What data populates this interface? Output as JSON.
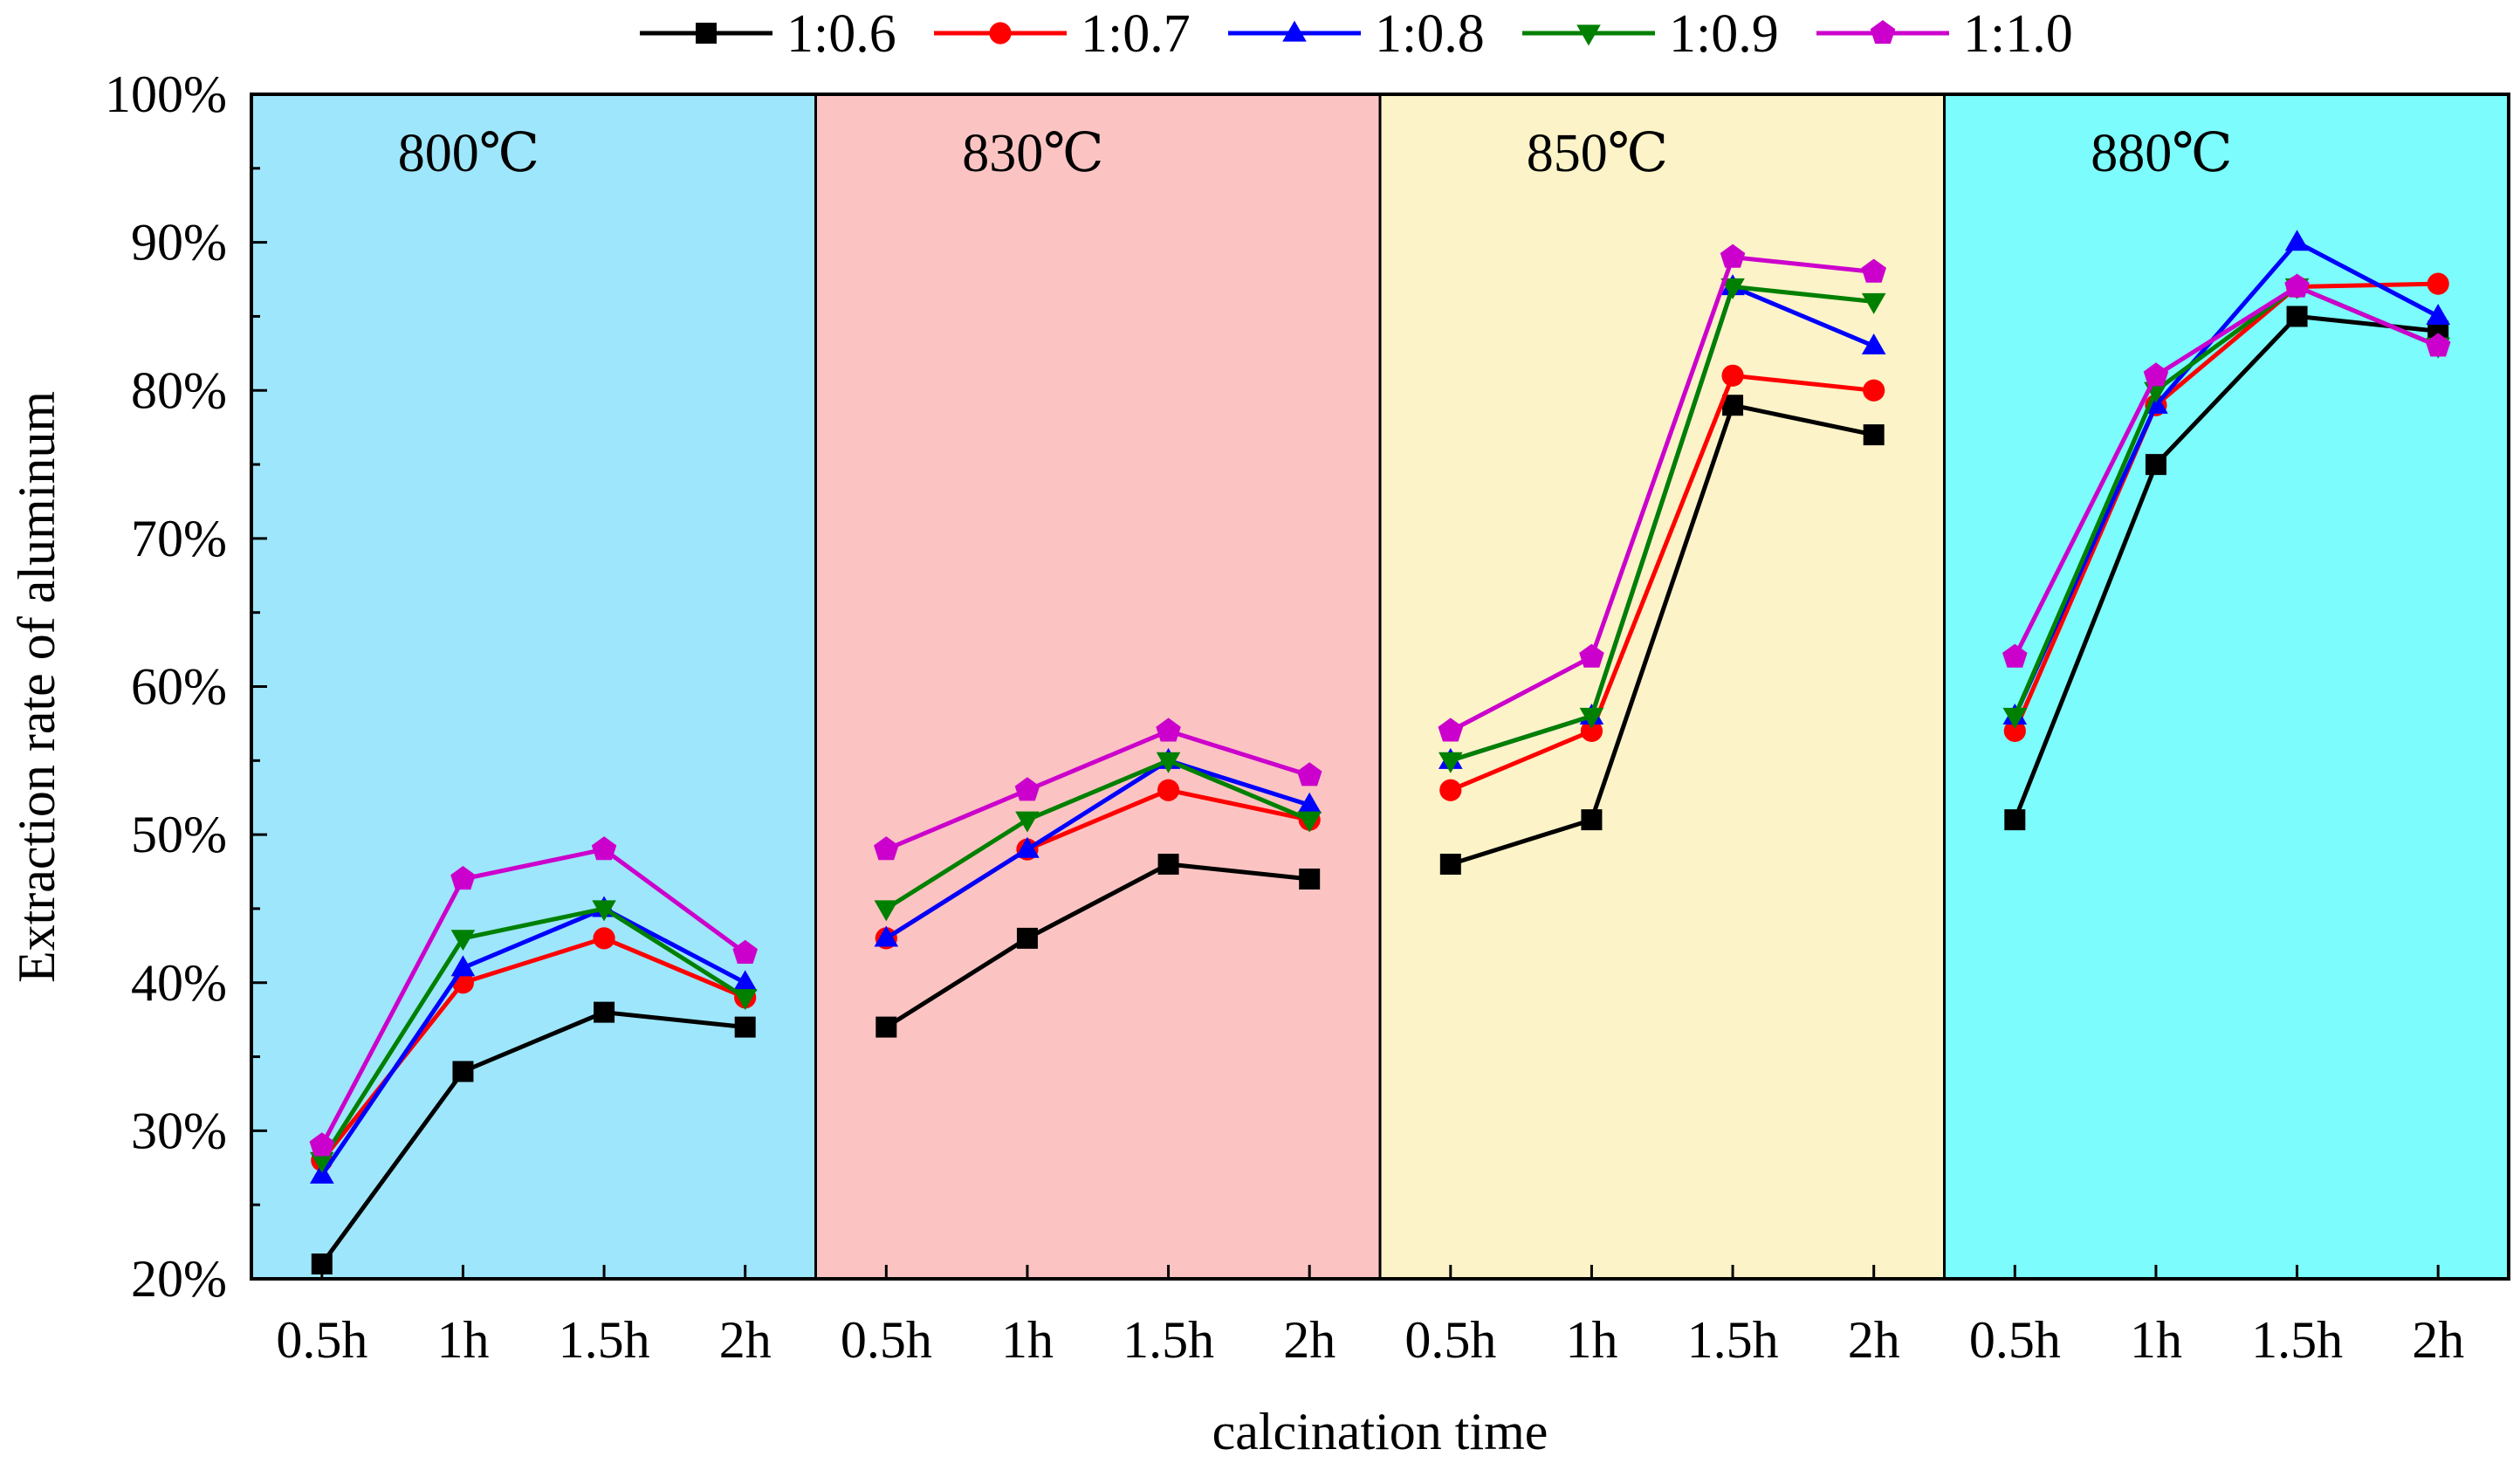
{
  "chart_data": {
    "type": "line",
    "xlabel": "calcination time",
    "ylabel": "Extraction rate of aluminum",
    "ylim": [
      20,
      100
    ],
    "yticks": [
      "20%",
      "30%",
      "40%",
      "50%",
      "60%",
      "70%",
      "80%",
      "90%",
      "100%"
    ],
    "ytick_values": [
      20,
      30,
      40,
      50,
      60,
      70,
      80,
      90,
      100
    ],
    "time_labels": [
      "0.5h",
      "1h",
      "1.5h",
      "2h"
    ],
    "panels": [
      {
        "label": "800℃",
        "color": "#9ee6fc"
      },
      {
        "label": "830℃",
        "color": "#fbc4c2"
      },
      {
        "label": "850℃",
        "color": "#fcf3c8"
      },
      {
        "label": "880℃",
        "color": "#7cfcfc"
      }
    ],
    "series": [
      {
        "name": "1:0.6",
        "color": "#000000",
        "marker": "square",
        "values": [
          [
            21,
            34,
            38,
            37
          ],
          [
            37,
            43,
            48,
            47
          ],
          [
            48,
            51,
            79,
            77
          ],
          [
            51,
            75,
            85,
            84
          ]
        ]
      },
      {
        "name": "1:0.7",
        "color": "#ff0000",
        "marker": "circle",
        "values": [
          [
            28,
            40,
            43,
            39
          ],
          [
            43,
            49,
            53,
            51
          ],
          [
            53,
            57,
            81,
            80
          ],
          [
            57,
            79,
            87,
            87.2
          ]
        ]
      },
      {
        "name": "1:0.8",
        "color": "#0000ff",
        "marker": "triangle-up",
        "values": [
          [
            27,
            41,
            45,
            40
          ],
          [
            43,
            49,
            55,
            52
          ],
          [
            55,
            58,
            87,
            83
          ],
          [
            58,
            79,
            90,
            85
          ]
        ]
      },
      {
        "name": "1:0.9",
        "color": "#008000",
        "marker": "triangle-down",
        "values": [
          [
            28,
            43,
            45,
            39
          ],
          [
            45,
            51,
            55,
            51
          ],
          [
            55,
            58,
            87,
            86
          ],
          [
            58,
            80,
            87,
            83
          ]
        ]
      },
      {
        "name": "1:1.0",
        "color": "#cc00cc",
        "marker": "pentagon",
        "values": [
          [
            29,
            47,
            49,
            42
          ],
          [
            49,
            53,
            57,
            54
          ],
          [
            57,
            62,
            89,
            88
          ],
          [
            62,
            81,
            87,
            83
          ]
        ]
      }
    ]
  }
}
